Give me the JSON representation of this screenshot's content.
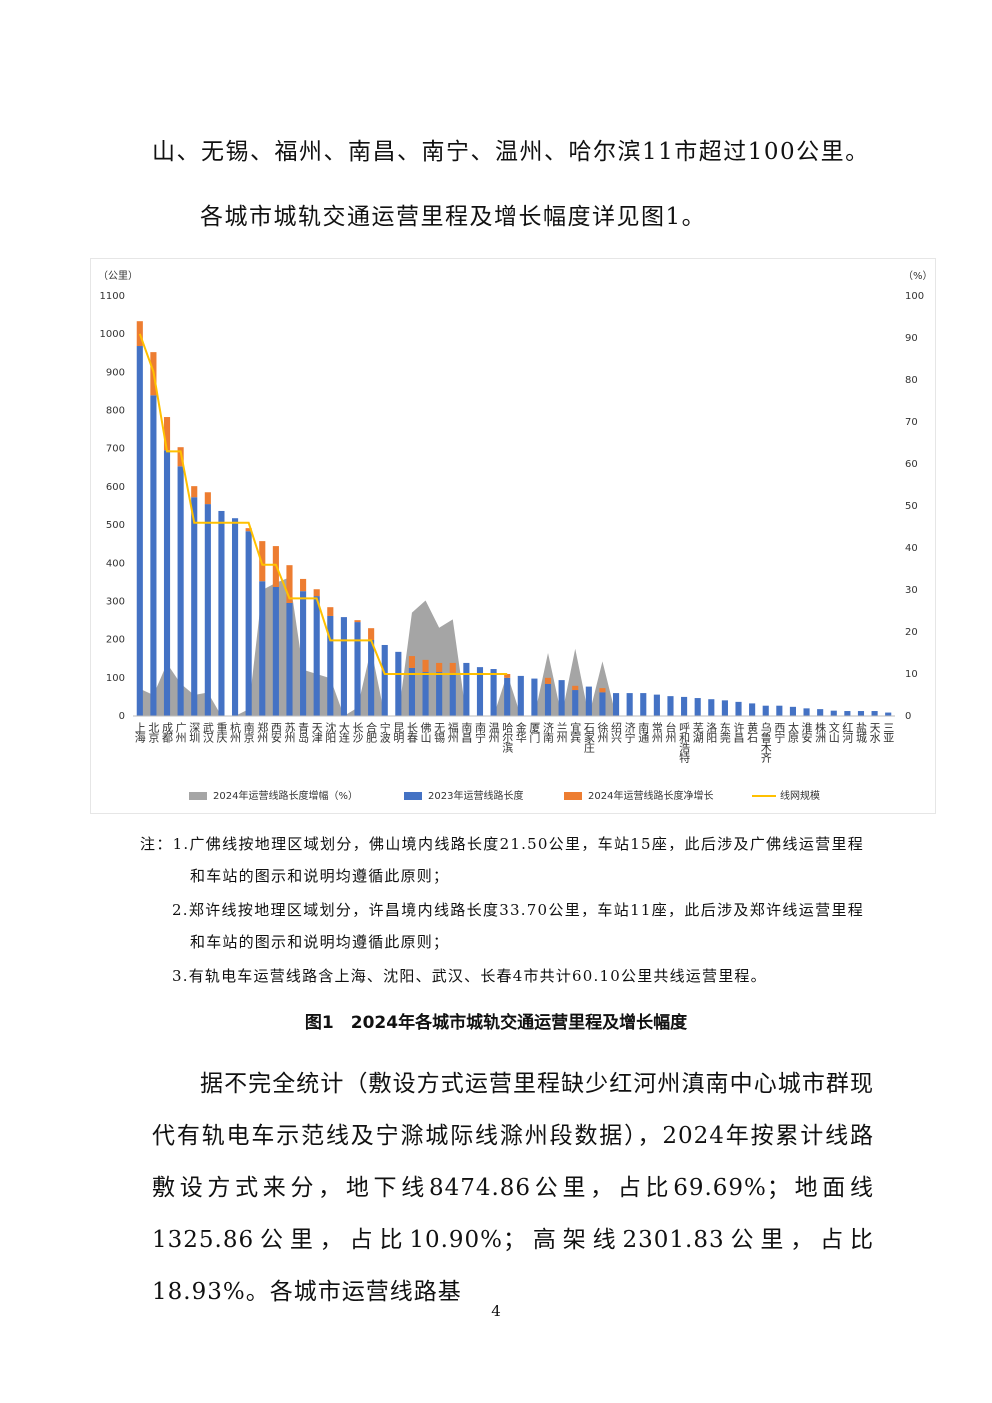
{
  "paragraphs": [
    "山、无锡、福州、南昌、南宁、温州、哈尔滨11市超过100公里。",
    "各城市城轨交通运营里程及增长幅度详见图1。"
  ],
  "chart_data": {
    "type": "bar",
    "y_label": "（公里）",
    "y2_label": "（%）",
    "categories": [
      "上海",
      "北京",
      "成都",
      "广州",
      "深圳",
      "武汉",
      "重庆",
      "杭州",
      "南京",
      "郑州",
      "西安",
      "苏州",
      "青岛",
      "天津",
      "沈阳",
      "大连",
      "长沙",
      "合肥",
      "宁波",
      "昆明",
      "长春",
      "佛山",
      "无锡",
      "福州",
      "南昌",
      "南宁",
      "温州",
      "哈尔滨",
      "金华",
      "厦门",
      "济南",
      "兰州",
      "宜宾",
      "石家庄",
      "徐州",
      "绍兴",
      "济宁",
      "南通",
      "常州",
      "台州",
      "呼和浩特",
      "芜湖",
      "洛阳",
      "东莞",
      "许昌",
      "黄石",
      "乌鲁木齐",
      "西宁",
      "太原",
      "淮安",
      "株洲",
      "文山",
      "红河",
      "盐城",
      "天水",
      "三亚"
    ],
    "series": [
      {
        "name": "2024年运营线路长度增幅（%）",
        "type": "area",
        "axis": "y2",
        "color": "#a5a5a5",
        "values": [
          6.5,
          5,
          12.5,
          7.7,
          5,
          5.6,
          0,
          0,
          1.6,
          30,
          31.7,
          33,
          11,
          10,
          9,
          0,
          2,
          16,
          0,
          0,
          24.6,
          27.5,
          21,
          23,
          0,
          0,
          0,
          10,
          0,
          0,
          15,
          0,
          16,
          0,
          13,
          0,
          0,
          0,
          0,
          0,
          0,
          0,
          0,
          0,
          0,
          0,
          0,
          0,
          0,
          0,
          0,
          0,
          0,
          0,
          0,
          0
        ]
      },
      {
        "name": "2023年运营线路长度",
        "type": "bar",
        "color": "#4472c4",
        "values": [
          969,
          840,
          696,
          654,
          573,
          555,
          537,
          518,
          484,
          353,
          338,
          296,
          327,
          314,
          262,
          259,
          246,
          199,
          186,
          168,
          126,
          115,
          115,
          113,
          139,
          128,
          123,
          100,
          105,
          98,
          84,
          94,
          68,
          77,
          62,
          60,
          60,
          60,
          56,
          52,
          50,
          47,
          44,
          41,
          37,
          33,
          27,
          27,
          24,
          20,
          18,
          14,
          13,
          13,
          13,
          9
        ]
      },
      {
        "name": "2024年运营线路长度净增长",
        "type": "bar",
        "stacked": true,
        "color": "#ed7d31",
        "values": [
          65,
          113,
          87,
          50,
          29,
          31,
          0,
          0,
          8,
          105,
          107,
          99,
          32,
          18,
          23,
          0,
          5,
          31,
          0,
          0,
          31,
          32,
          24,
          26,
          0,
          0,
          0,
          10,
          0,
          0,
          16,
          0,
          11,
          0,
          11,
          0,
          0,
          0,
          0,
          0,
          0,
          0,
          0,
          0,
          0,
          0,
          0,
          0,
          0,
          0,
          0,
          0,
          0,
          0,
          0,
          0
        ]
      },
      {
        "name": "线网规模",
        "type": "line",
        "axis": "y2",
        "color": "#ffc000",
        "values": [
          91,
          82,
          63,
          63,
          46,
          46,
          46,
          46,
          46,
          36,
          36,
          28,
          28,
          28,
          18,
          18,
          18,
          18,
          10,
          10,
          10,
          10,
          10,
          10,
          10,
          10,
          10,
          10,
          null,
          null,
          null,
          null,
          null,
          null,
          null,
          null,
          null,
          null,
          null,
          null,
          null,
          null,
          null,
          null,
          null,
          null,
          null,
          null,
          null,
          null,
          null,
          null,
          null,
          null,
          null,
          null
        ]
      }
    ],
    "ylim": [
      0,
      1100
    ],
    "yticks": [
      0,
      100,
      200,
      300,
      400,
      500,
      600,
      700,
      800,
      900,
      1000,
      1100
    ],
    "y2lim": [
      0,
      100
    ],
    "y2ticks": [
      0,
      10,
      20,
      30,
      40,
      50,
      60,
      70,
      80,
      90,
      100
    ],
    "grid": false,
    "legend": "bottom"
  },
  "notes": [
    "注：1.广佛线按地理区域划分，佛山境内线路长度21.50公里，车站15座，此后涉及广佛线运营里程和车站的图示和说明均遵循此原则；",
    "2.郑许线按地理区域划分，许昌境内线路长度33.70公里，车站11座，此后涉及郑许线运营里程和车站的图示和说明均遵循此原则；",
    "3.有轨电车运营线路含上海、沈阳、武汉、长春4市共计60.10公里共线运营里程。"
  ],
  "caption": "图1　2024年各城市城轨交通运营里程及增长幅度",
  "body": "据不完全统计（敷设方式运营里程缺少红河州滇南中心城市群现代有轨电车示范线及宁滁城际线滁州段数据），2024年按累计线路敷设方式来分，地下线8474.86公里，占比69.69%；地面线1325.86公里，占比10.90%；高架线2301.83公里，占比18.93%。各城市运营线路基",
  "page_number": "4"
}
